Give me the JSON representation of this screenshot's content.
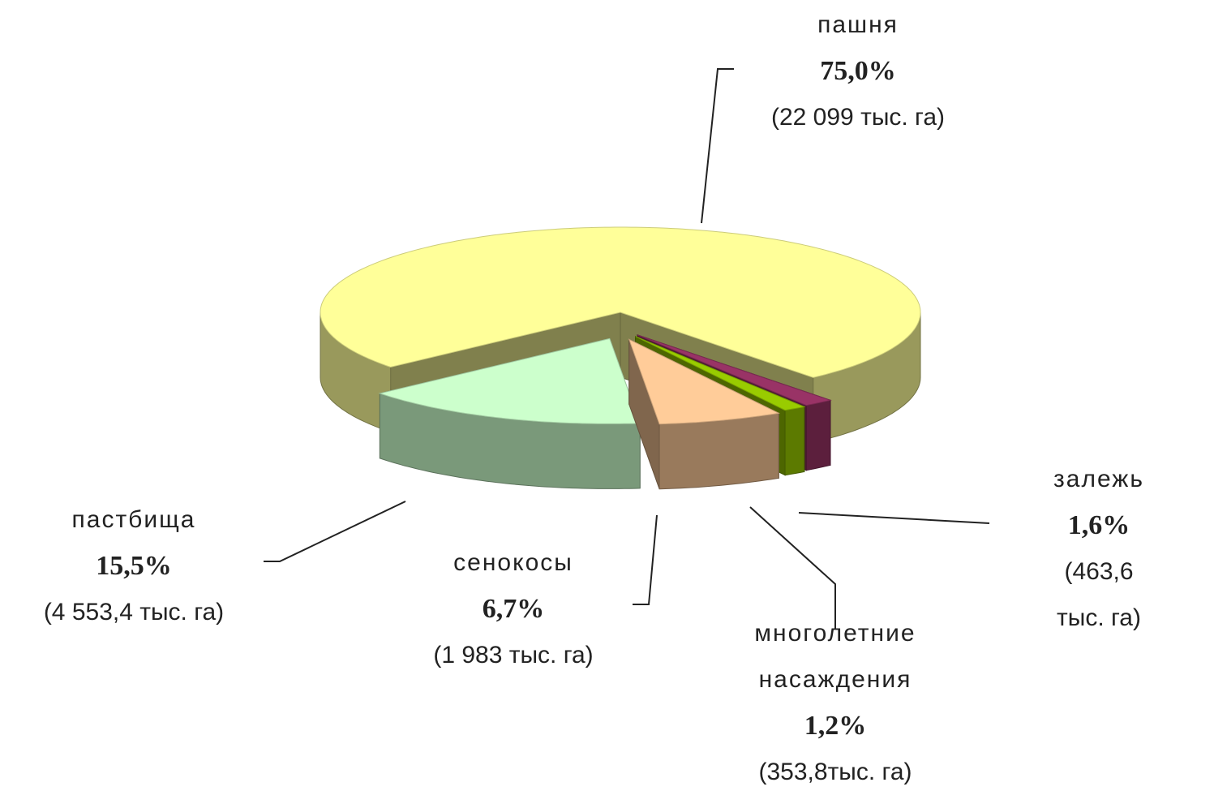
{
  "chart_data": {
    "type": "pie3d",
    "categories": [
      "пашня",
      "пастбища",
      "сенокосы",
      "многолетние насаждения",
      "залежь"
    ],
    "values": [
      75.0,
      15.5,
      6.7,
      1.2,
      1.6
    ],
    "value_labels": [
      "75,0%",
      "15,5%",
      "6,7%",
      "1,2%",
      "1,6%"
    ],
    "area_labels": [
      "(22 099 тыс. га)",
      "(4 553,4 тыс. га)",
      "(1 983 тыс. га)",
      "(353,8тыс. га)",
      "(463,6 тыс. га)"
    ],
    "colors": [
      "#ffff99",
      "#ccffcc",
      "#ffcc99",
      "#99cc00",
      "#993366"
    ]
  }
}
